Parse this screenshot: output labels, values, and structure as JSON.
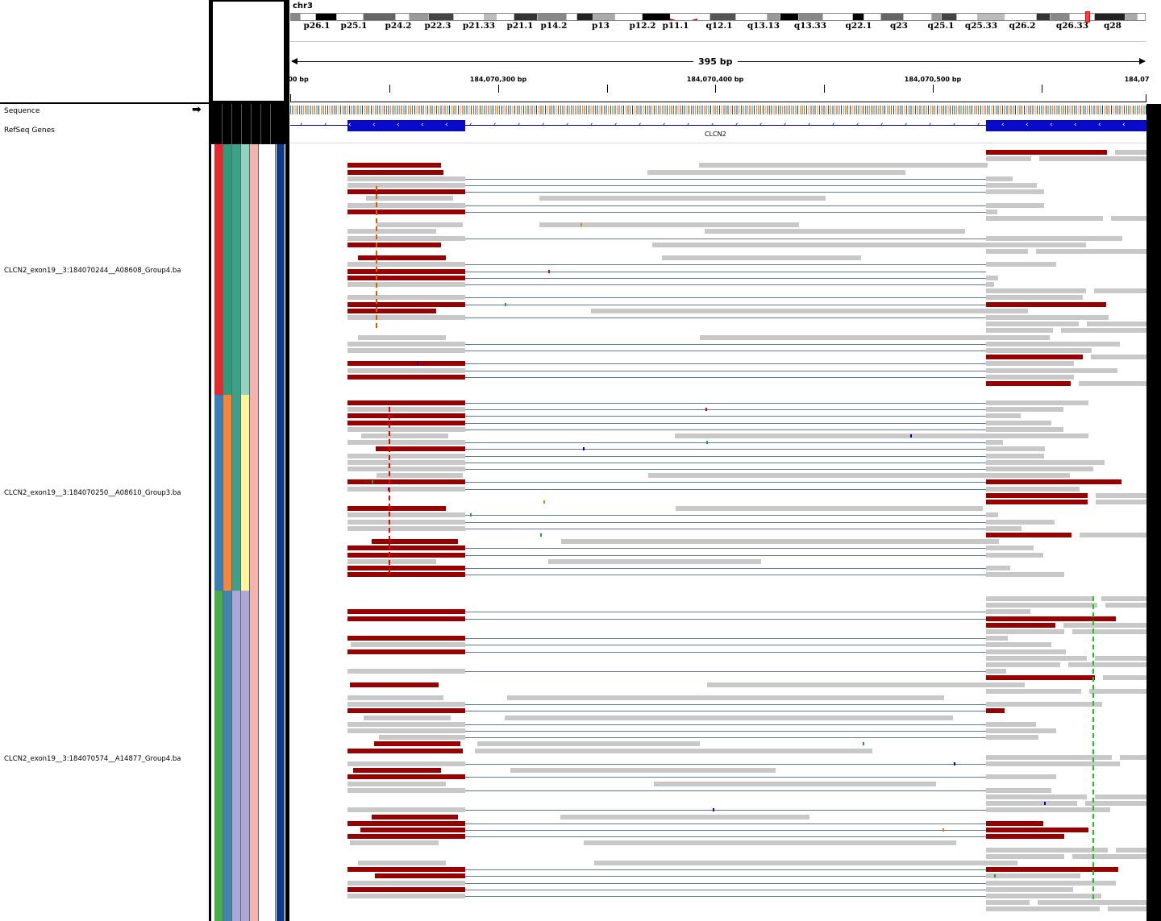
{
  "locus": {
    "chrom": "chr3"
  },
  "ideogram": {
    "bands": [
      "p26.1",
      "p25.1",
      "p24.2",
      "p22.3",
      "p21.33",
      "p21.1",
      "p14.2",
      "p13",
      "p12.2",
      "p11.1",
      "q12.1",
      "q13.13",
      "q13.33",
      "q22.1",
      "q23",
      "q25.1",
      "q25.33",
      "q26.2",
      "q26.33",
      "q28"
    ]
  },
  "ruler": {
    "span": "395 bp",
    "ticks": [
      "00 bp",
      "184,070,300 bp",
      "184,070,400 bp",
      "184,070,500 bp",
      "184,07"
    ]
  },
  "tracks": {
    "sequence": "Sequence",
    "refseq": "RefSeq Genes",
    "gene_name": "CLCN2"
  },
  "alignments": [
    {
      "label": "CLCN2_exon19__3:184070244__A08608_Group4.ba",
      "colors": [
        "#e8282c",
        "#2e9b7a",
        "#3aa288",
        "#8ed4c0",
        "#f5b3ae",
        "#ffffff",
        "#0b3a8a"
      ]
    },
    {
      "label": "CLCN2_exon19__3:184070250__A08610_Group3.ba",
      "colors": [
        "#3b7fb8",
        "#f5863a",
        "#3aa288",
        "#fff59a",
        "#f5b3ae",
        "#ffffff",
        "#0b3a8a"
      ]
    },
    {
      "label": "CLCN2_exon19__3:184070574__A14877_Group4.ba",
      "colors": [
        "#49ab4c",
        "#3d86b0",
        "#a9a8d8",
        "#a9a8d8",
        "#f5b3ae",
        "#ffffff",
        "#0b3a8a"
      ]
    }
  ],
  "colors": {
    "split_read": "#990000",
    "read": "#c8c8c8",
    "exon": "#0a0acd",
    "junction": "#5a7a9a"
  }
}
